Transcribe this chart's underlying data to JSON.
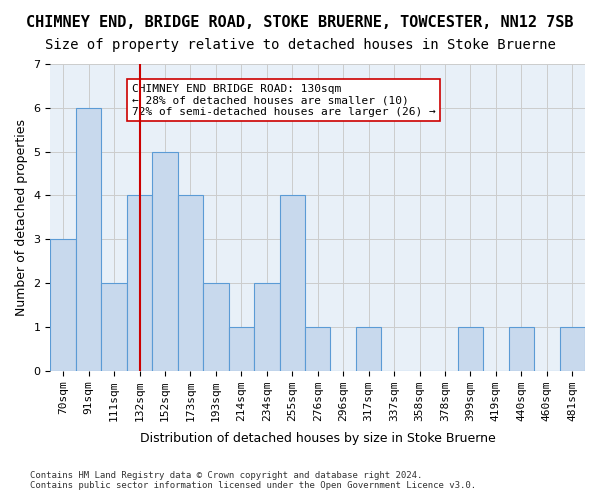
{
  "title": "CHIMNEY END, BRIDGE ROAD, STOKE BRUERNE, TOWCESTER, NN12 7SB",
  "subtitle": "Size of property relative to detached houses in Stoke Bruerne",
  "xlabel": "Distribution of detached houses by size in Stoke Bruerne",
  "ylabel": "Number of detached properties",
  "footnote": "Contains HM Land Registry data © Crown copyright and database right 2024.\nContains public sector information licensed under the Open Government Licence v3.0.",
  "bins": [
    "70sqm",
    "91sqm",
    "111sqm",
    "132sqm",
    "152sqm",
    "173sqm",
    "193sqm",
    "214sqm",
    "234sqm",
    "255sqm",
    "276sqm",
    "296sqm",
    "317sqm",
    "337sqm",
    "358sqm",
    "378sqm",
    "399sqm",
    "419sqm",
    "440sqm",
    "460sqm",
    "481sqm"
  ],
  "values": [
    3,
    6,
    2,
    4,
    5,
    4,
    2,
    1,
    2,
    4,
    1,
    0,
    1,
    0,
    0,
    0,
    1,
    0,
    1,
    0,
    1
  ],
  "bar_color": "#c8d9ed",
  "bar_edge_color": "#5b9bd5",
  "property_bin_index": 3,
  "property_line_color": "#cc0000",
  "ylim": [
    0,
    7
  ],
  "yticks": [
    0,
    1,
    2,
    3,
    4,
    5,
    6,
    7
  ],
  "annotation_text": "CHIMNEY END BRIDGE ROAD: 130sqm\n← 28% of detached houses are smaller (10)\n72% of semi-detached houses are larger (26) →",
  "annotation_box_color": "#ffffff",
  "annotation_box_edge_color": "#cc0000",
  "background_color": "#ffffff",
  "grid_color": "#cccccc",
  "title_fontsize": 11,
  "subtitle_fontsize": 10,
  "axis_label_fontsize": 9,
  "tick_fontsize": 8,
  "annotation_fontsize": 8
}
